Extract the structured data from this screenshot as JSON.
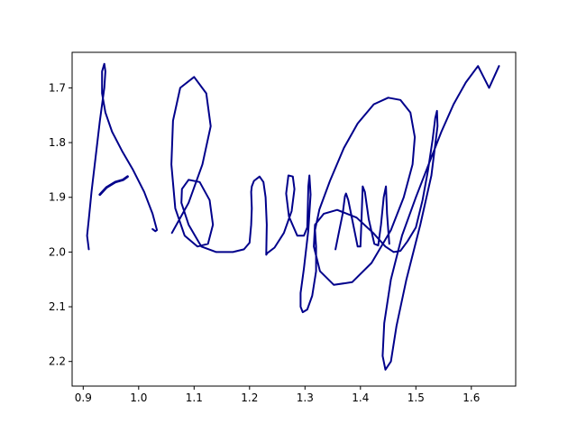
{
  "chart_data": {
    "type": "line",
    "title": "",
    "xlabel": "",
    "ylabel": "",
    "xlim": [
      0.88,
      1.68
    ],
    "ylim": [
      2.245,
      1.635
    ],
    "y_inverted": true,
    "grid": false,
    "legend": "none",
    "xticks": [
      0.9,
      1.0,
      1.1,
      1.2,
      1.3,
      1.4,
      1.5,
      1.6
    ],
    "yticks": [
      1.7,
      1.8,
      1.9,
      2.0,
      2.1,
      2.2
    ],
    "xtick_labels": [
      "0.9",
      "1.0",
      "1.1",
      "1.2",
      "1.3",
      "1.4",
      "1.5",
      "1.6"
    ],
    "ytick_labels": [
      "1.7",
      "1.8",
      "1.9",
      "2.0",
      "2.1",
      "2.2"
    ],
    "series": [
      {
        "color": "#00008b",
        "x": [
          0.91,
          0.907,
          0.91,
          0.915,
          0.922,
          0.93,
          0.938,
          0.94,
          0.938,
          0.934,
          0.934,
          0.94,
          0.952,
          0.97,
          0.99,
          1.01,
          1.025,
          1.033,
          1.03,
          1.025
        ],
        "y": [
          1.995,
          1.97,
          1.94,
          1.89,
          1.83,
          1.76,
          1.7,
          1.67,
          1.656,
          1.67,
          1.71,
          1.745,
          1.78,
          1.815,
          1.85,
          1.89,
          1.93,
          1.96,
          1.962,
          1.958
        ]
      },
      {
        "color": "#00008b",
        "x": [
          0.93,
          0.942,
          0.958,
          0.972,
          0.98
        ],
        "y": [
          1.895,
          1.882,
          1.872,
          1.868,
          1.862
        ]
      },
      {
        "color": "#00008b",
        "x": [
          1.06,
          1.09,
          1.115,
          1.13,
          1.122,
          1.1,
          1.075,
          1.062,
          1.059,
          1.066,
          1.083,
          1.106,
          1.125,
          1.134,
          1.128,
          1.11,
          1.09,
          1.078,
          1.077,
          1.09,
          1.113,
          1.14,
          1.17,
          1.19,
          1.2,
          1.203,
          1.204,
          1.203,
          1.204,
          1.208,
          1.218,
          1.225,
          1.229,
          1.231,
          1.23,
          1.232,
          1.245,
          1.262,
          1.276,
          1.281,
          1.278,
          1.27,
          1.266,
          1.271,
          1.286,
          1.298,
          1.304,
          1.305,
          1.306,
          1.308,
          1.31,
          1.306,
          1.298,
          1.292,
          1.292,
          1.296,
          1.304,
          1.313,
          1.32,
          1.32,
          1.318,
          1.326,
          1.345,
          1.37,
          1.395,
          1.424,
          1.45,
          1.472,
          1.49,
          1.498,
          1.494,
          1.478,
          1.455,
          1.42,
          1.385,
          1.352,
          1.327,
          1.316,
          1.318,
          1.334,
          1.358,
          1.393,
          1.423,
          1.445,
          1.46,
          1.472,
          1.485,
          1.5,
          1.512,
          1.522,
          1.53,
          1.535,
          1.538,
          1.539,
          1.528,
          1.508,
          1.483,
          1.465,
          1.455,
          1.445,
          1.44,
          1.443,
          1.455,
          1.475,
          1.5,
          1.523,
          1.546,
          1.568,
          1.59,
          1.612,
          1.632,
          1.65
        ],
        "y": [
          1.965,
          1.91,
          1.84,
          1.77,
          1.71,
          1.68,
          1.7,
          1.76,
          1.84,
          1.92,
          1.97,
          1.99,
          1.985,
          1.95,
          1.905,
          1.872,
          1.868,
          1.885,
          1.91,
          1.95,
          1.99,
          2.0,
          2.0,
          1.995,
          1.983,
          1.95,
          1.92,
          1.89,
          1.88,
          1.87,
          1.862,
          1.872,
          1.9,
          1.95,
          2.005,
          2.002,
          1.992,
          1.965,
          1.925,
          1.885,
          1.862,
          1.86,
          1.893,
          1.935,
          1.97,
          1.97,
          1.955,
          1.92,
          1.88,
          1.86,
          1.895,
          1.96,
          2.03,
          2.075,
          2.1,
          2.11,
          2.105,
          2.08,
          2.035,
          1.99,
          1.96,
          1.922,
          1.87,
          1.81,
          1.765,
          1.73,
          1.718,
          1.722,
          1.745,
          1.79,
          1.84,
          1.9,
          1.96,
          2.02,
          2.055,
          2.06,
          2.035,
          1.99,
          1.95,
          1.93,
          1.923,
          1.937,
          1.965,
          1.99,
          2.0,
          1.998,
          1.98,
          1.955,
          1.905,
          1.85,
          1.795,
          1.755,
          1.742,
          1.77,
          1.86,
          1.95,
          2.05,
          2.135,
          2.2,
          2.215,
          2.19,
          2.13,
          2.05,
          1.97,
          1.9,
          1.84,
          1.78,
          1.73,
          1.69,
          1.66,
          1.7,
          1.66
        ]
      },
      {
        "color": "#00008b",
        "x": [
          1.355,
          1.362,
          1.368,
          1.372,
          1.374,
          1.378,
          1.386,
          1.395,
          1.4,
          1.402,
          1.404,
          1.408,
          1.415,
          1.425,
          1.432,
          1.437,
          1.442,
          1.446,
          1.448,
          1.452
        ],
        "y": [
          1.995,
          1.96,
          1.93,
          1.898,
          1.893,
          1.905,
          1.945,
          1.99,
          1.99,
          1.94,
          1.88,
          1.89,
          1.94,
          1.985,
          1.988,
          1.95,
          1.9,
          1.88,
          1.93,
          1.985
        ]
      }
    ]
  }
}
